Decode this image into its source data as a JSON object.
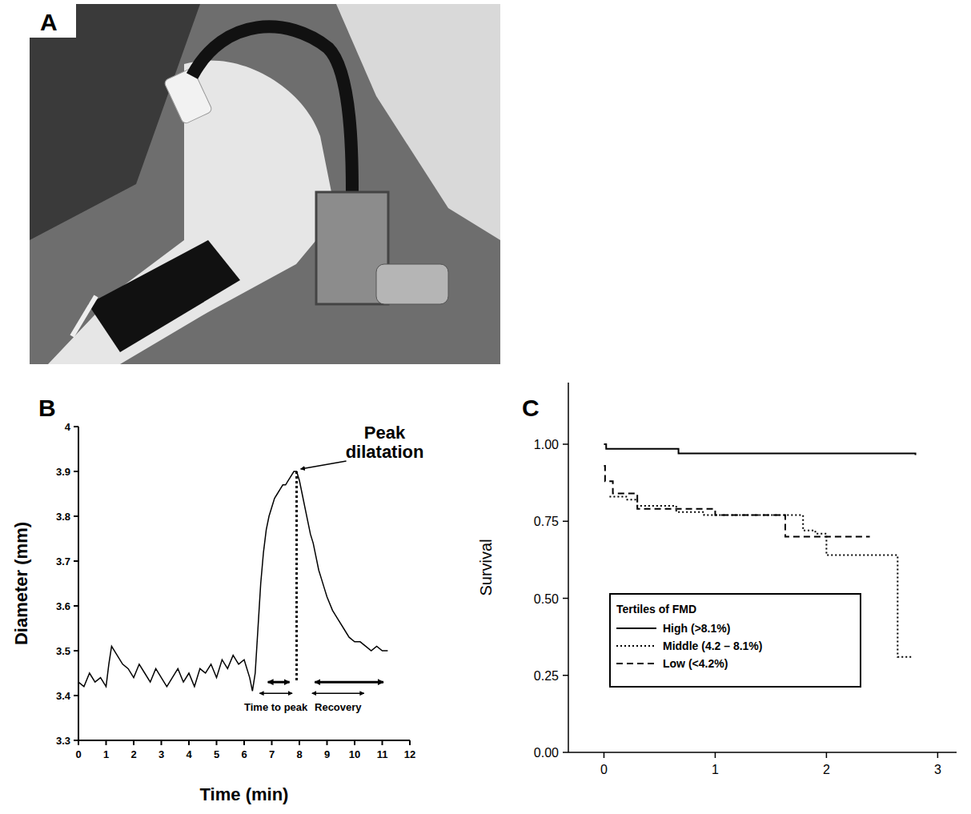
{
  "chart_data": [
    {
      "type": "image",
      "label": "A"
    },
    {
      "type": "line",
      "label": "B",
      "x_label": "Time (min)",
      "y_label": "Diameter (mm)",
      "xlim": [
        0,
        12
      ],
      "xticks": [
        0,
        1,
        2,
        3,
        4,
        5,
        6,
        7,
        8,
        9,
        10,
        11,
        12
      ],
      "ylim": [
        3.3,
        4
      ],
      "yticks": [
        3.3,
        3.4,
        3.5,
        3.6,
        3.7,
        3.8,
        3.9,
        4
      ],
      "grid": false,
      "series": [
        {
          "color": "#000000",
          "line_style": "solid",
          "x": [
            0,
            0.2,
            0.4,
            0.6,
            0.8,
            1.0,
            1.1,
            1.2,
            1.4,
            1.6,
            1.8,
            2.0,
            2.2,
            2.4,
            2.6,
            2.8,
            3.0,
            3.2,
            3.4,
            3.6,
            3.8,
            4.0,
            4.2,
            4.4,
            4.6,
            4.8,
            5.0,
            5.2,
            5.4,
            5.6,
            5.8,
            6.0,
            6.2,
            6.3,
            6.4,
            6.5,
            6.6,
            6.7,
            6.8,
            6.9,
            7.0,
            7.1,
            7.2,
            7.3,
            7.4,
            7.5,
            7.6,
            7.7,
            7.8,
            7.9,
            8.0,
            8.1,
            8.2,
            8.3,
            8.4,
            8.5,
            8.6,
            8.7,
            8.8,
            8.9,
            9.0,
            9.2,
            9.4,
            9.6,
            9.8,
            10.0,
            10.2,
            10.4,
            10.6,
            10.8,
            11.0,
            11.2
          ],
          "values": [
            3.43,
            3.42,
            3.45,
            3.43,
            3.44,
            3.42,
            3.47,
            3.51,
            3.49,
            3.47,
            3.46,
            3.44,
            3.47,
            3.45,
            3.43,
            3.46,
            3.44,
            3.42,
            3.44,
            3.46,
            3.43,
            3.45,
            3.42,
            3.46,
            3.45,
            3.47,
            3.44,
            3.48,
            3.46,
            3.49,
            3.47,
            3.48,
            3.44,
            3.41,
            3.45,
            3.55,
            3.65,
            3.72,
            3.77,
            3.8,
            3.82,
            3.84,
            3.85,
            3.86,
            3.87,
            3.87,
            3.88,
            3.89,
            3.9,
            3.9,
            3.88,
            3.85,
            3.82,
            3.79,
            3.76,
            3.74,
            3.71,
            3.68,
            3.66,
            3.64,
            3.62,
            3.59,
            3.57,
            3.55,
            3.53,
            3.52,
            3.52,
            3.51,
            3.5,
            3.51,
            3.5,
            3.5
          ]
        }
      ],
      "peak": {
        "label": "Peak dilatation",
        "x": 7.9,
        "y": 3.9
      },
      "intervals": [
        {
          "label": "Time to peak",
          "x": [
            6.5,
            7.8
          ],
          "y": 3.405
        },
        {
          "label": "Recovery",
          "x": [
            8.4,
            10.4
          ],
          "y": 3.405
        },
        {
          "x": [
            6.8,
            7.7
          ],
          "y": 3.43
        },
        {
          "x": [
            8.5,
            11.1
          ],
          "y": 3.43
        }
      ]
    },
    {
      "type": "line",
      "label": "C",
      "y_label": "Survival",
      "xlim": [
        -0.32,
        3.17
      ],
      "xticks": [
        0,
        1,
        2,
        3
      ],
      "ylim": [
        0,
        1.2
      ],
      "yticks": [
        {
          "value": 0,
          "label": "0.00"
        },
        {
          "value": 0.25,
          "label": "0.25"
        },
        {
          "value": 0.5,
          "label": "0.50"
        },
        {
          "value": 0.75,
          "label": "0.75"
        },
        {
          "value": 1,
          "label": "1.00"
        }
      ],
      "grid": false,
      "legend": "lower left",
      "legend_title": "Tertiles of FMD",
      "series": [
        {
          "name": "High (>8.1%)",
          "color": "#000000",
          "line_style": "solid",
          "x": [
            0,
            0.02,
            0.67,
            2.8
          ],
          "values": [
            1.0,
            0.985,
            0.97,
            0.965
          ]
        },
        {
          "name": "Middle (4.2 – 8.1%)",
          "color": "#000000",
          "line_style": "dotted",
          "x": [
            0.05,
            0.2,
            0.3,
            0.65,
            0.9,
            1.79,
            1.9,
            2.0,
            2.64,
            2.78
          ],
          "values": [
            0.83,
            0.82,
            0.8,
            0.78,
            0.77,
            0.72,
            0.71,
            0.64,
            0.31,
            0.31
          ]
        },
        {
          "name": "Low (<4.2%)",
          "color": "#000000",
          "line_style": "dashed",
          "x": [
            0,
            0.01,
            0.08,
            0.3,
            1.0,
            1.63,
            2.39
          ],
          "values": [
            0.93,
            0.88,
            0.84,
            0.79,
            0.77,
            0.7,
            0.7
          ]
        }
      ]
    }
  ]
}
